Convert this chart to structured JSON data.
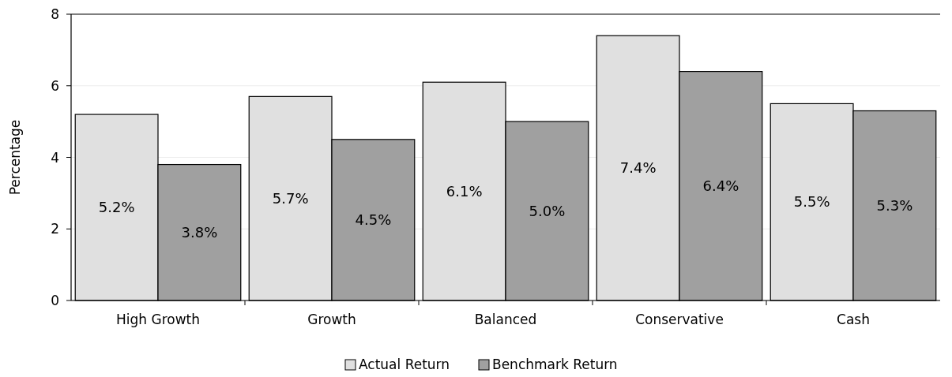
{
  "chart_data": {
    "type": "bar",
    "ylabel": "Percentage",
    "categories": [
      "High Growth",
      "Growth",
      "Balanced",
      "Conservative",
      "Cash"
    ],
    "series": [
      {
        "name": "Actual Return",
        "color": "#e0e0e0",
        "values": [
          5.2,
          5.7,
          6.1,
          7.4,
          5.5
        ],
        "value_labels": [
          "5.2%",
          "5.7%",
          "6.1%",
          "7.4%",
          "5.5%"
        ]
      },
      {
        "name": "Benchmark Return",
        "color": "#a0a0a0",
        "values": [
          3.8,
          4.5,
          5.0,
          6.4,
          5.3
        ],
        "value_labels": [
          "3.8%",
          "4.5%",
          "5.0%",
          "6.4%",
          "5.3%"
        ]
      }
    ],
    "ylim": [
      0,
      8
    ],
    "yticks": [
      0,
      2,
      4,
      6,
      8
    ],
    "grid": "y",
    "legend": "bottom"
  }
}
